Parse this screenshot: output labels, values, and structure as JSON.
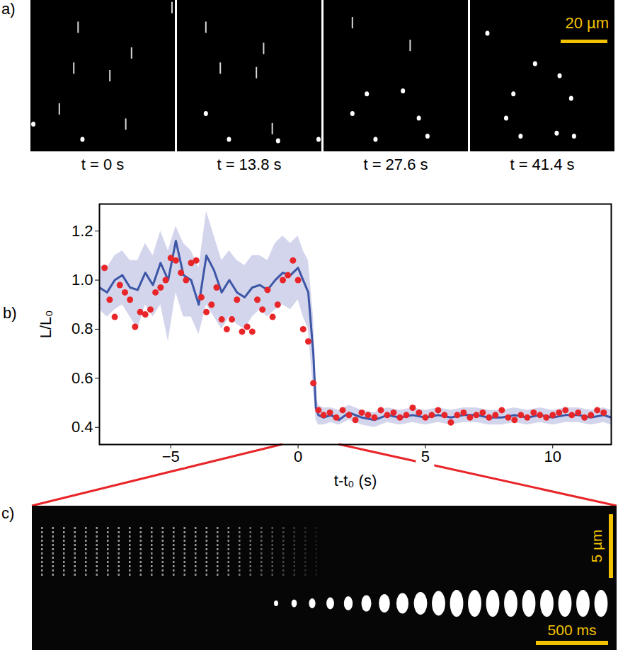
{
  "chart_data": {
    "type": "line",
    "panel_label": "b)",
    "x_label": "t-t₀ (s)",
    "y_label": "L/L₀",
    "xlim": [
      -7.8,
      12.3
    ],
    "ylim": [
      0.33,
      1.31
    ],
    "xticks": [
      -5,
      0,
      5,
      10
    ],
    "yticks": [
      0.4,
      0.6,
      0.8,
      1,
      1.2
    ],
    "series": [
      {
        "type": "area",
        "color": "#d3d5ec",
        "x": [
          -7.8,
          -7.5,
          -7.2,
          -6.9,
          -6.6,
          -6.3,
          -6,
          -5.7,
          -5.4,
          -5.1,
          -4.8,
          -4.5,
          -4.2,
          -3.9,
          -3.6,
          -3.3,
          -3,
          -2.7,
          -2.4,
          -2.1,
          -1.8,
          -1.5,
          -1.2,
          -0.9,
          -0.6,
          -0.3,
          0,
          0.2,
          0.4,
          0.6,
          0.7,
          0.8,
          1,
          1.3,
          1.6,
          2,
          2.5,
          3,
          3.5,
          4,
          4.5,
          5,
          5.5,
          6,
          6.5,
          7,
          7.5,
          8,
          8.5,
          9,
          9.5,
          10,
          10.5,
          11,
          11.5,
          12,
          12.3
        ],
        "lower": [
          0.88,
          0.85,
          0.88,
          0.9,
          0.85,
          0.8,
          0.9,
          0.85,
          0.9,
          0.75,
          0.95,
          0.85,
          0.85,
          0.78,
          0.9,
          0.85,
          0.8,
          0.85,
          0.82,
          0.8,
          0.85,
          0.88,
          0.85,
          0.88,
          0.9,
          0.88,
          0.92,
          0.85,
          0.8,
          0.55,
          0.43,
          0.41,
          0.41,
          0.42,
          0.41,
          0.43,
          0.41,
          0.4,
          0.42,
          0.41,
          0.42,
          0.41,
          0.42,
          0.41,
          0.42,
          0.42,
          0.41,
          0.41,
          0.42,
          0.41,
          0.42,
          0.41,
          0.42,
          0.42,
          0.41,
          0.42,
          0.41
        ],
        "upper": [
          1.06,
          1.05,
          1.1,
          1.12,
          1.08,
          1.08,
          1.15,
          1.1,
          1.2,
          1.12,
          1.22,
          1.15,
          1.12,
          1.05,
          1.28,
          1.18,
          1.08,
          1.12,
          1.08,
          1.06,
          1.1,
          1.1,
          1.08,
          1.15,
          1.18,
          1.15,
          1.18,
          1.12,
          1.08,
          0.85,
          0.53,
          0.49,
          0.48,
          0.48,
          0.47,
          0.49,
          0.47,
          0.46,
          0.48,
          0.47,
          0.48,
          0.47,
          0.48,
          0.47,
          0.48,
          0.48,
          0.47,
          0.47,
          0.48,
          0.47,
          0.48,
          0.47,
          0.48,
          0.48,
          0.47,
          0.48,
          0.47
        ]
      },
      {
        "type": "line",
        "color": "#3d56a6",
        "x": [
          -7.8,
          -7.5,
          -7.2,
          -6.9,
          -6.6,
          -6.3,
          -6,
          -5.7,
          -5.4,
          -5.1,
          -4.8,
          -4.5,
          -4.2,
          -3.9,
          -3.6,
          -3.3,
          -3,
          -2.7,
          -2.4,
          -2.1,
          -1.8,
          -1.5,
          -1.2,
          -0.9,
          -0.6,
          -0.3,
          0,
          0.2,
          0.4,
          0.6,
          0.7,
          0.8,
          1,
          1.3,
          1.6,
          2,
          2.5,
          3,
          3.5,
          4,
          4.5,
          5,
          5.5,
          6,
          6.5,
          7,
          7.5,
          8,
          8.5,
          9,
          9.5,
          10,
          10.5,
          11,
          11.5,
          12,
          12.3
        ],
        "values": [
          0.97,
          0.95,
          1.0,
          1.02,
          0.97,
          0.96,
          1.03,
          0.98,
          1.07,
          1.0,
          1.16,
          1.02,
          1.0,
          0.9,
          1.1,
          1.04,
          0.95,
          1.0,
          0.95,
          0.93,
          0.97,
          0.98,
          0.96,
          1.0,
          1.03,
          1.02,
          1.05,
          1.0,
          0.95,
          0.7,
          0.48,
          0.45,
          0.44,
          0.45,
          0.43,
          0.46,
          0.44,
          0.43,
          0.45,
          0.44,
          0.45,
          0.44,
          0.45,
          0.44,
          0.45,
          0.45,
          0.44,
          0.44,
          0.45,
          0.44,
          0.45,
          0.44,
          0.45,
          0.45,
          0.44,
          0.45,
          0.44
        ]
      },
      {
        "type": "scatter",
        "marker": "circle",
        "color": "#e8262a",
        "x": [
          -7.6,
          -7.4,
          -7.2,
          -7,
          -6.8,
          -6.6,
          -6.4,
          -6.2,
          -6,
          -5.8,
          -5.6,
          -5.4,
          -5.2,
          -5,
          -4.8,
          -4.6,
          -4.4,
          -4.2,
          -4,
          -3.8,
          -3.6,
          -3.4,
          -3.2,
          -3,
          -2.8,
          -2.6,
          -2.4,
          -2.2,
          -2,
          -1.8,
          -1.6,
          -1.4,
          -1.2,
          -1,
          -0.8,
          -0.6,
          -0.4,
          -0.2,
          0,
          0.2,
          0.4,
          0.6,
          0.8,
          1,
          1.25,
          1.5,
          1.75,
          2,
          2.25,
          2.5,
          2.75,
          3,
          3.25,
          3.5,
          3.75,
          4,
          4.25,
          4.5,
          4.75,
          5,
          5.25,
          5.5,
          5.75,
          6,
          6.25,
          6.5,
          6.75,
          7,
          7.25,
          7.5,
          7.75,
          8,
          8.25,
          8.5,
          8.75,
          9,
          9.25,
          9.5,
          9.75,
          10,
          10.25,
          10.5,
          10.75,
          11,
          11.25,
          11.5,
          11.75,
          12
        ],
        "values": [
          1.05,
          0.92,
          0.85,
          0.98,
          0.95,
          0.92,
          0.81,
          0.87,
          0.86,
          0.88,
          0.95,
          0.97,
          1.0,
          1.09,
          1.08,
          1.03,
          1.0,
          1.07,
          1.08,
          0.93,
          0.87,
          0.9,
          0.97,
          0.84,
          0.8,
          0.84,
          0.92,
          0.79,
          0.81,
          0.79,
          0.92,
          0.88,
          0.96,
          0.85,
          0.9,
          1.0,
          1.02,
          1.08,
          1.0,
          0.8,
          0.75,
          0.58,
          0.47,
          0.45,
          0.46,
          0.44,
          0.47,
          0.45,
          0.43,
          0.46,
          0.45,
          0.44,
          0.47,
          0.45,
          0.46,
          0.44,
          0.45,
          0.48,
          0.46,
          0.44,
          0.45,
          0.47,
          0.45,
          0.42,
          0.45,
          0.46,
          0.44,
          0.45,
          0.46,
          0.44,
          0.45,
          0.47,
          0.44,
          0.43,
          0.45,
          0.44,
          0.46,
          0.45,
          0.44,
          0.45,
          0.46,
          0.47,
          0.45,
          0.46,
          0.44,
          0.45,
          0.47,
          0.46
        ]
      }
    ]
  },
  "panels": {
    "a": {
      "panel_label": "a)",
      "times": [
        "t = 0 s",
        "t = 13.8 s",
        "t = 27.6 s",
        "t = 41.4 s"
      ],
      "scale_bar": "20 µm"
    },
    "c": {
      "panel_label": "c)",
      "t_range": [
        -0.6,
        1.6
      ],
      "scale_bars": [
        "5 µm",
        "500 ms"
      ]
    }
  }
}
